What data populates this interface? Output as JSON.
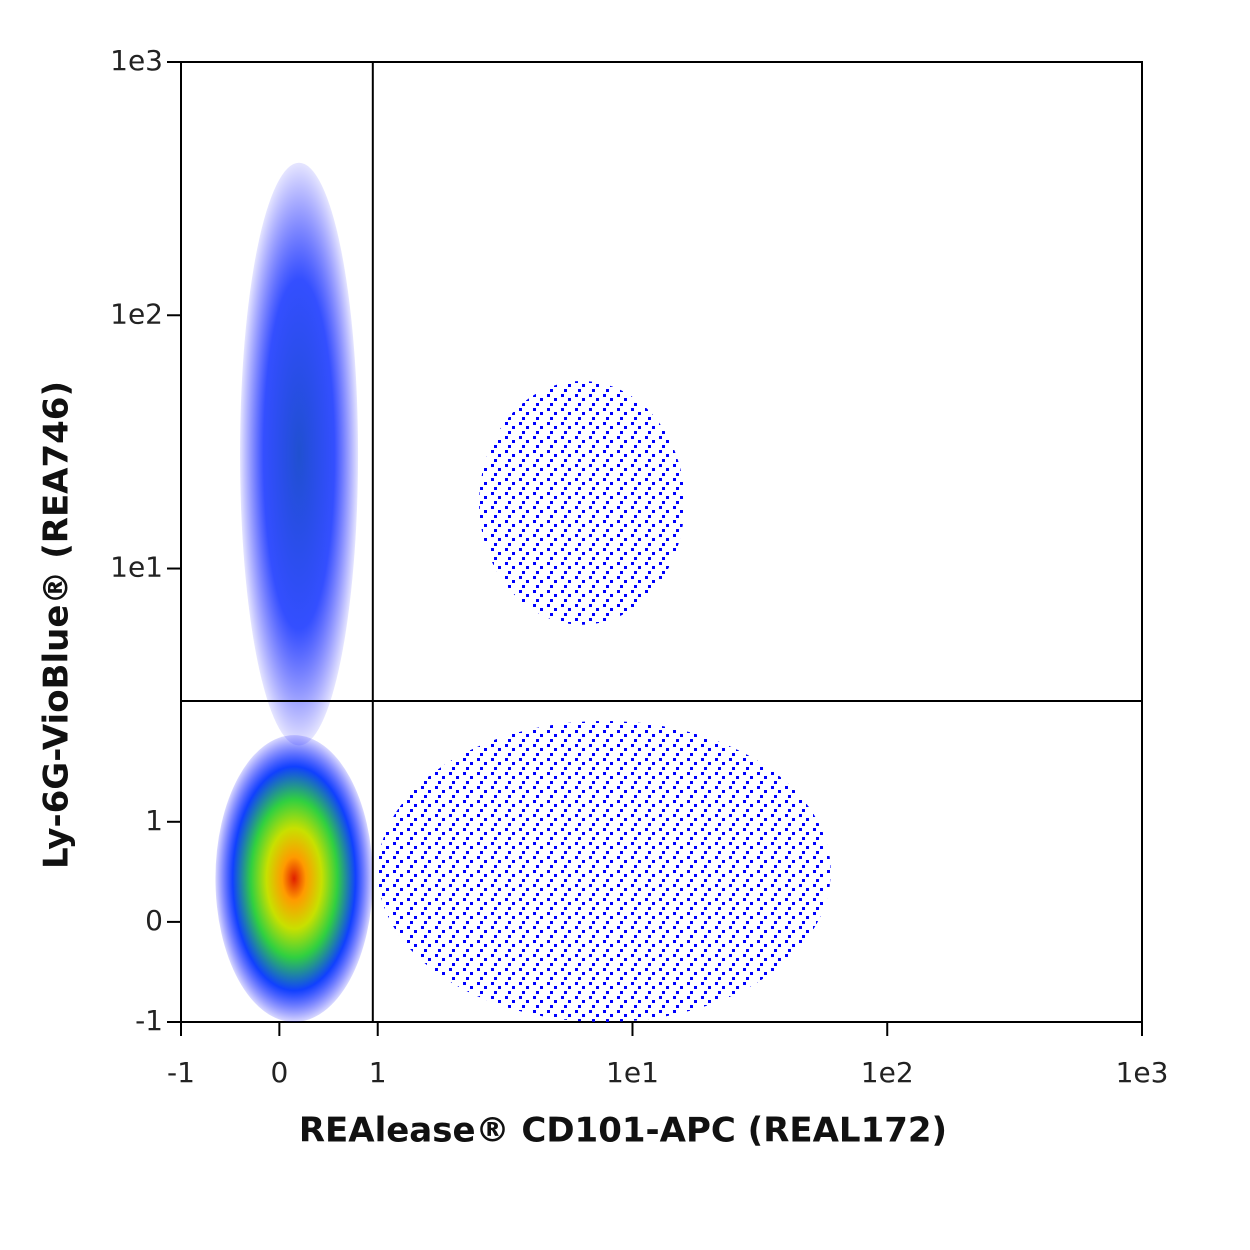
{
  "chart_data": {
    "type": "scatter",
    "x_label": "REAlease® CD101-APC (REAL172)",
    "y_label": "Ly-6G-VioBlue® (REA746)",
    "scale": "hybrid-log",
    "xlim": [
      -1,
      1000
    ],
    "ylim": [
      -1,
      1000
    ],
    "xticks": [
      -1,
      0,
      1,
      {
        "value": 10,
        "label": "1e1"
      },
      {
        "value": 100,
        "label": "1e2"
      },
      {
        "value": 1000,
        "label": "1e3"
      }
    ],
    "yticks": [
      -1,
      0,
      1,
      {
        "value": 10,
        "label": "1e1"
      },
      {
        "value": 100,
        "label": "1e2"
      },
      {
        "value": 1000,
        "label": "1e3"
      }
    ],
    "gates": {
      "x": 0.95,
      "y": 3
    },
    "color": "#0000ff",
    "populations": [
      {
        "xrange": [
          -0.4,
          0.8
        ],
        "yrange": [
          2,
          400
        ],
        "density": "medium"
      },
      {
        "xrange": [
          2.5,
          16
        ],
        "yrange": [
          6,
          55
        ],
        "density": "low"
      },
      {
        "xrange": [
          1,
          60
        ],
        "yrange": [
          -1,
          2.5
        ],
        "density": "low"
      },
      {
        "xrange": [
          -0.65,
          0.95
        ],
        "yrange": [
          -1,
          2.2
        ],
        "density": "high"
      }
    ]
  }
}
